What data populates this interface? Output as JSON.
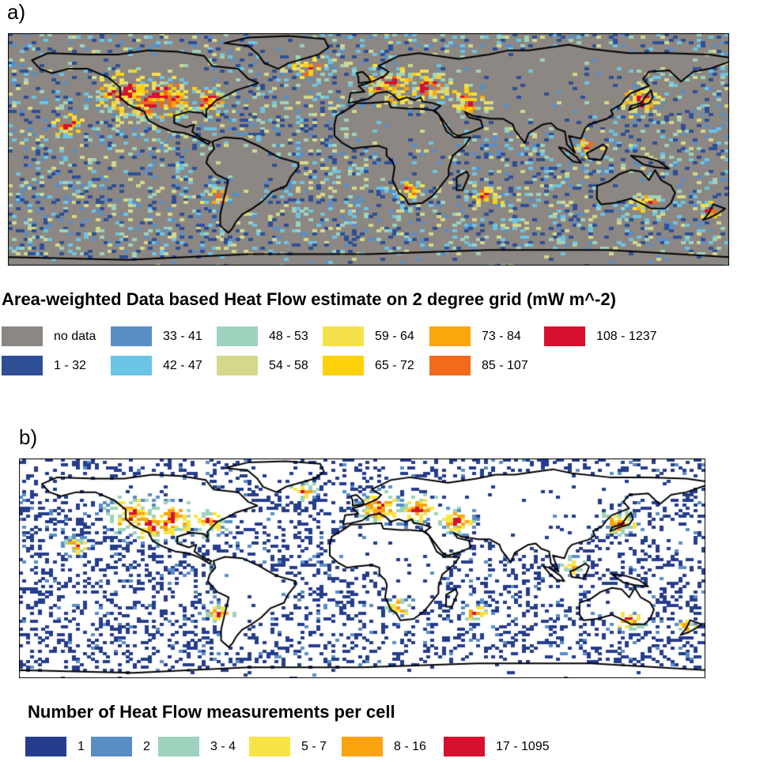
{
  "panel_a": {
    "label": "a)",
    "legend_title": "Area-weighted Data based Heat Flow estimate on 2 degree grid (mW m^-2)",
    "ocean_color": "#8c8782",
    "classes": [
      {
        "label": "no data",
        "color": "#8c8782"
      },
      {
        "label": "1 - 32",
        "color": "#2e4f96"
      },
      {
        "label": "33 - 41",
        "color": "#5a8ec6"
      },
      {
        "label": "42 - 47",
        "color": "#6cc4e4"
      },
      {
        "label": "48 - 53",
        "color": "#9ed2bc"
      },
      {
        "label": "54 - 58",
        "color": "#d4d88a"
      },
      {
        "label": "59 - 64",
        "color": "#f5e14a"
      },
      {
        "label": "65 - 72",
        "color": "#fdd20a"
      },
      {
        "label": "73 - 84",
        "color": "#fba60c"
      },
      {
        "label": "85 - 107",
        "color": "#f26a1c"
      },
      {
        "label": "108 - 1237",
        "color": "#d7102f"
      }
    ]
  },
  "panel_b": {
    "label": "b)",
    "legend_title": "Number of Heat Flow measurements per cell",
    "classes": [
      {
        "label": "1",
        "color": "#253d8c"
      },
      {
        "label": "2",
        "color": "#5a8ec6"
      },
      {
        "label": "3 - 4",
        "color": "#9ed2bc"
      },
      {
        "label": "5 - 7",
        "color": "#f8e446"
      },
      {
        "label": "8 - 16",
        "color": "#fba40d"
      },
      {
        "label": "17 - 1095",
        "color": "#d7102f"
      }
    ]
  }
}
